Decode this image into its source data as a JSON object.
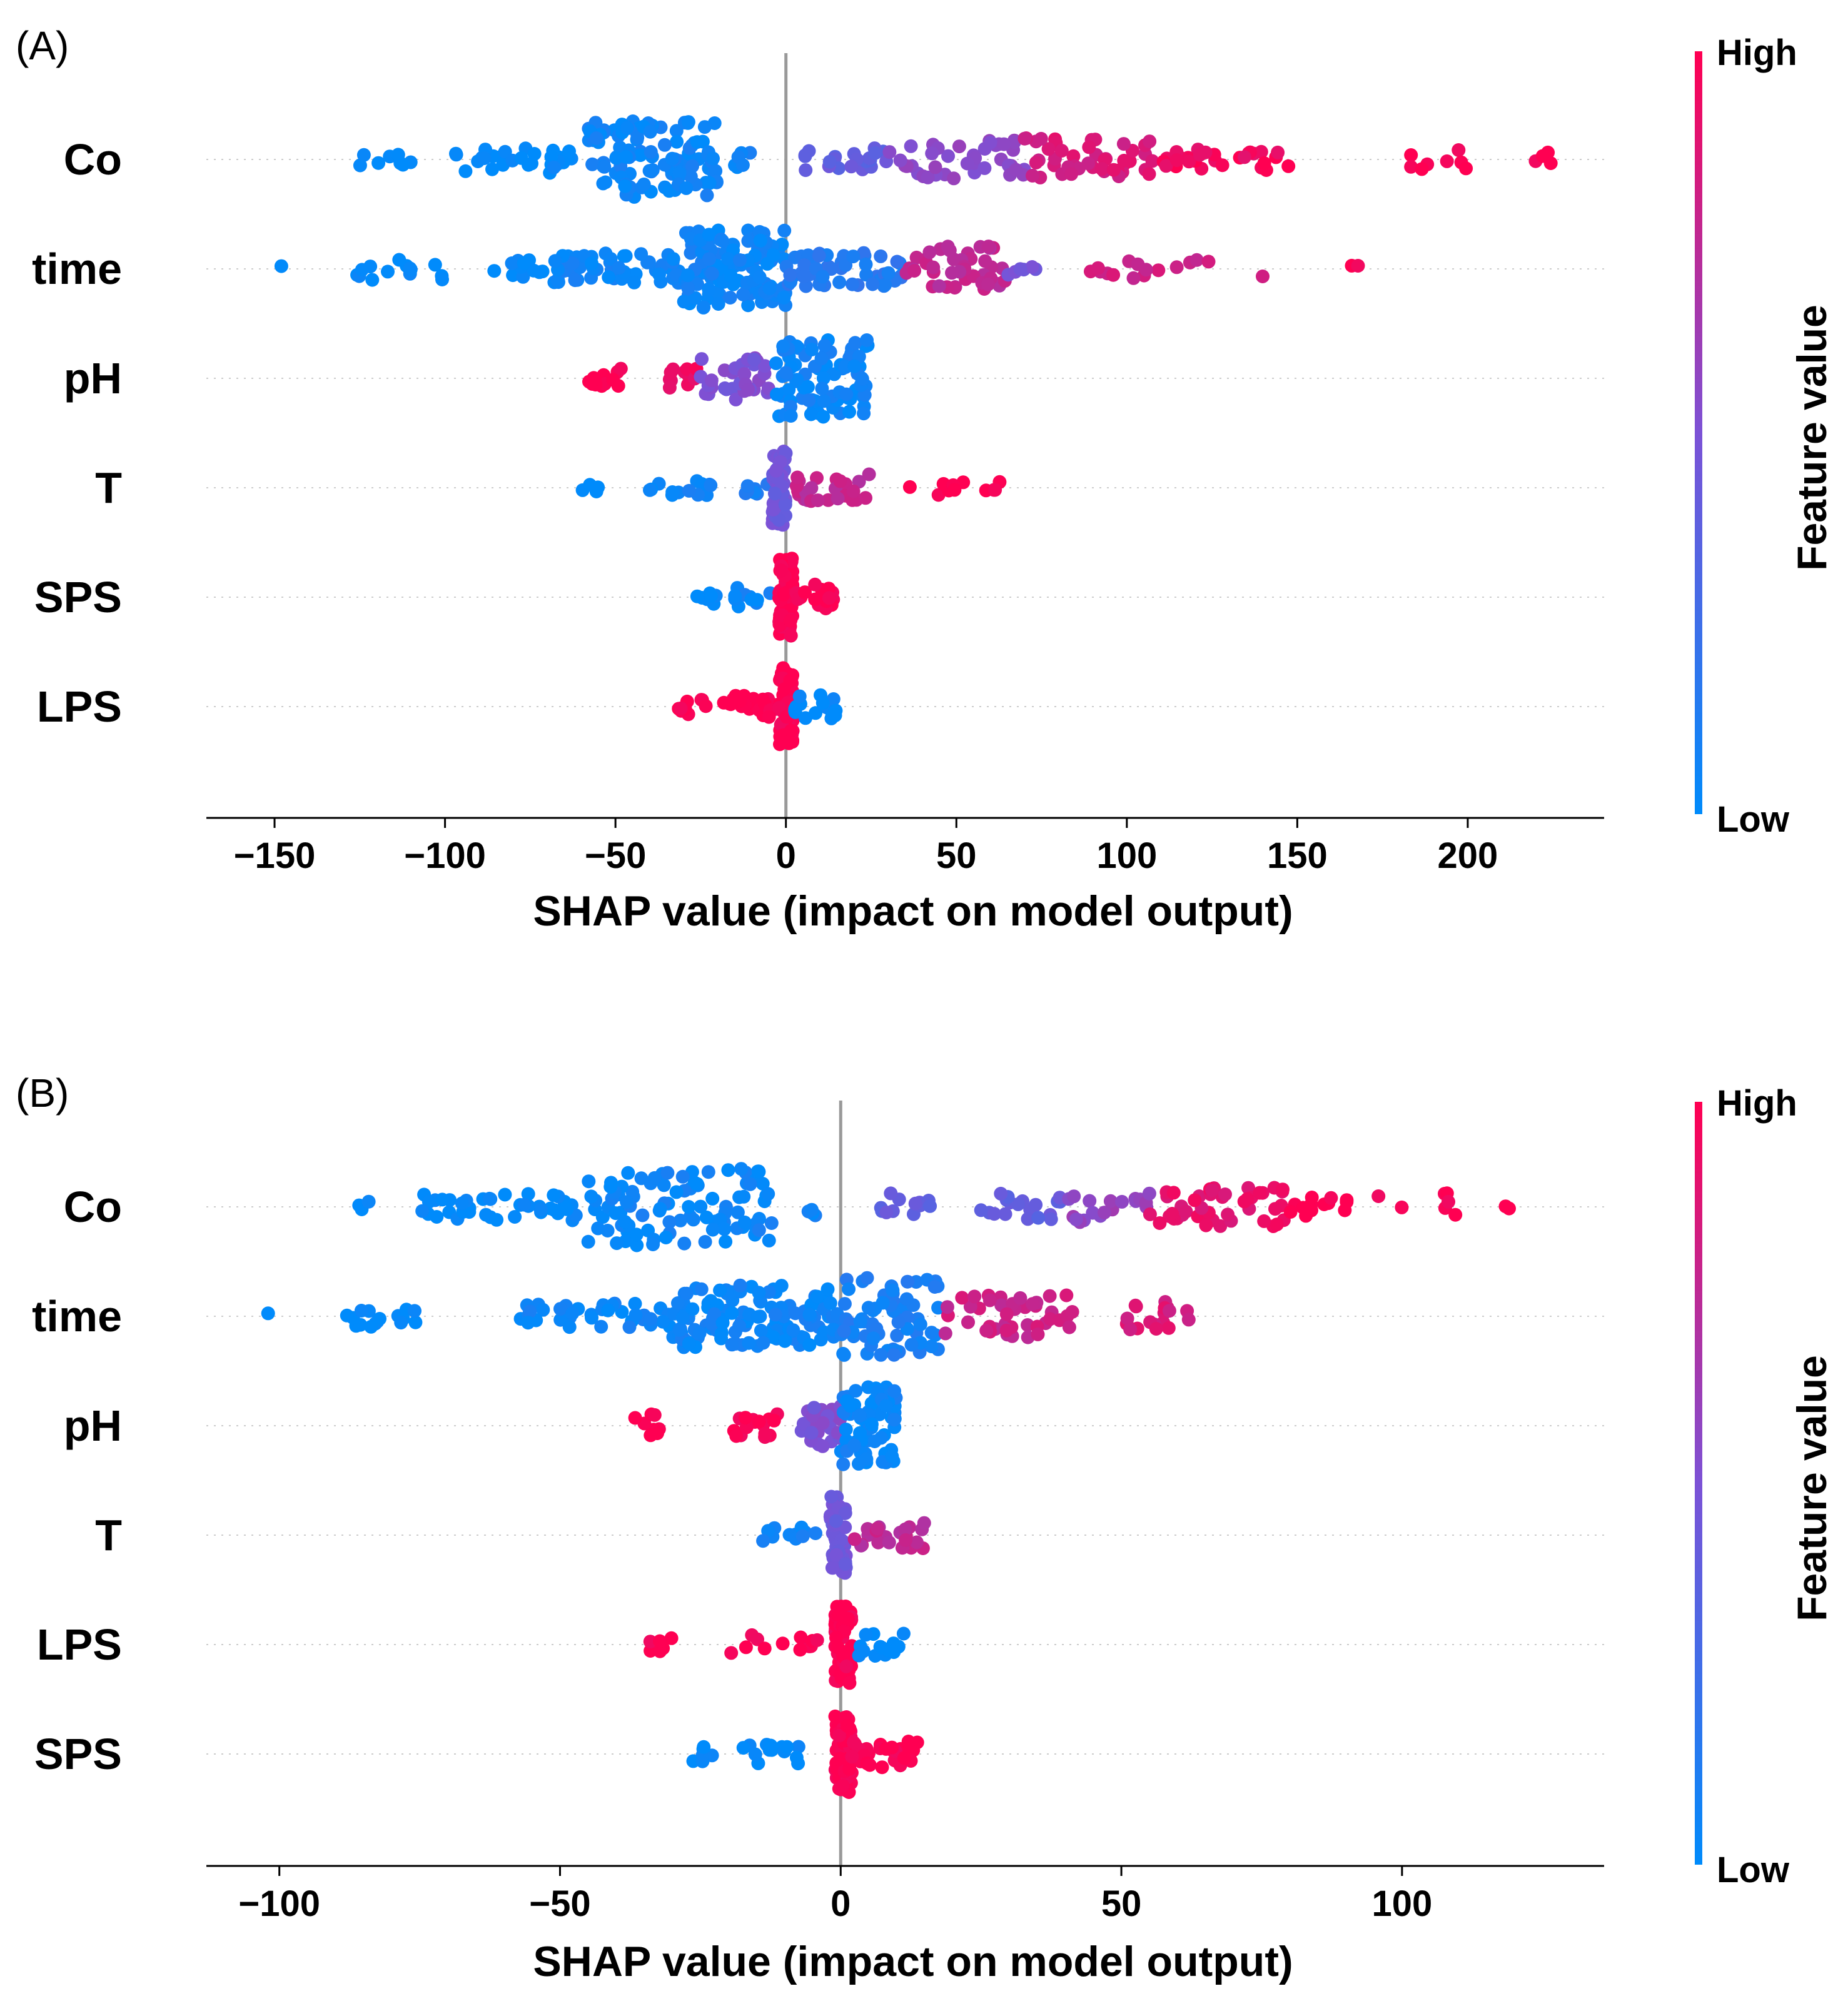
{
  "colors": {
    "low": "#008bfb",
    "high": "#ff0052",
    "axis": "#000000",
    "zero_line": "#999999",
    "grid": "#cccccc"
  },
  "chart_data": [
    {
      "panel_label": "(A)",
      "type": "scatter",
      "subtype": "shap-beeswarm",
      "xlabel": "SHAP value (impact on model output)",
      "xlim": [
        -170,
        240
      ],
      "xticks": [
        -150,
        -100,
        -50,
        0,
        50,
        100,
        150,
        200
      ],
      "xtick_labels": [
        "−150",
        "−100",
        "−50",
        "0",
        "50",
        "100",
        "150",
        "200"
      ],
      "colorbar": {
        "label": "Feature value",
        "high_label": "High",
        "low_label": "Low"
      },
      "features": [
        {
          "name": "Co",
          "segments": [
            {
              "from": -128,
              "to": -110,
              "color": 0.0,
              "count": 8,
              "spread": 0.2
            },
            {
              "from": -97,
              "to": -62,
              "color": 0.0,
              "count": 32,
              "spread": 0.35
            },
            {
              "from": -58,
              "to": -20,
              "color": 0.05,
              "count": 110,
              "spread": 1.0
            },
            {
              "from": -15,
              "to": -10,
              "color": 0.05,
              "count": 6,
              "spread": 0.3
            },
            {
              "from": 5,
              "to": 30,
              "color": 0.4,
              "count": 22,
              "spread": 0.3
            },
            {
              "from": 30,
              "to": 70,
              "color": 0.55,
              "count": 40,
              "spread": 0.5
            },
            {
              "from": 70,
              "to": 110,
              "color": 0.85,
              "count": 45,
              "spread": 0.55
            },
            {
              "from": 110,
              "to": 150,
              "color": 0.95,
              "count": 30,
              "spread": 0.3
            },
            {
              "from": 182,
              "to": 200,
              "color": 1.0,
              "count": 8,
              "spread": 0.25
            },
            {
              "from": 218,
              "to": 225,
              "color": 1.0,
              "count": 4,
              "spread": 0.2
            }
          ]
        },
        {
          "name": "time",
          "segments": [
            {
              "from": -148,
              "to": -147,
              "color": 0.0,
              "count": 1,
              "spread": 0.1
            },
            {
              "from": -127,
              "to": -100,
              "color": 0.0,
              "count": 14,
              "spread": 0.3
            },
            {
              "from": -86,
              "to": -70,
              "color": 0.0,
              "count": 14,
              "spread": 0.25
            },
            {
              "from": -68,
              "to": -30,
              "color": 0.05,
              "count": 60,
              "spread": 0.4
            },
            {
              "from": -30,
              "to": 0,
              "color": 0.05,
              "count": 130,
              "spread": 1.0
            },
            {
              "from": 0,
              "to": 35,
              "color": 0.15,
              "count": 55,
              "spread": 0.45
            },
            {
              "from": 35,
              "to": 65,
              "color": 0.75,
              "count": 45,
              "spread": 0.6
            },
            {
              "from": 65,
              "to": 75,
              "color": 0.5,
              "count": 6,
              "spread": 0.2
            },
            {
              "from": 88,
              "to": 140,
              "color": 0.8,
              "count": 16,
              "spread": 0.25
            },
            {
              "from": 150,
              "to": 168,
              "color": 1.0,
              "count": 2,
              "spread": 0.1
            }
          ]
        },
        {
          "name": "pH",
          "segments": [
            {
              "from": -58,
              "to": -48,
              "color": 1.0,
              "count": 14,
              "spread": 0.25
            },
            {
              "from": -35,
              "to": -25,
              "color": 0.95,
              "count": 12,
              "spread": 0.3
            },
            {
              "from": -25,
              "to": -5,
              "color": 0.5,
              "count": 35,
              "spread": 0.55
            },
            {
              "from": -3,
              "to": 24,
              "color": 0.05,
              "count": 90,
              "spread": 1.0
            }
          ]
        },
        {
          "name": "T",
          "segments": [
            {
              "from": -60,
              "to": -55,
              "color": 0.0,
              "count": 4,
              "spread": 0.15
            },
            {
              "from": -45,
              "to": -22,
              "color": 0.05,
              "count": 14,
              "spread": 0.2
            },
            {
              "from": -12,
              "to": -5,
              "color": 0.1,
              "count": 8,
              "spread": 0.2
            },
            {
              "from": -4,
              "to": 0,
              "color": 0.45,
              "count": 70,
              "spread": 1.0
            },
            {
              "from": 3,
              "to": 25,
              "color": 0.75,
              "count": 26,
              "spread": 0.35
            },
            {
              "from": 35,
              "to": 52,
              "color": 1.0,
              "count": 7,
              "spread": 0.2
            },
            {
              "from": 58,
              "to": 64,
              "color": 1.0,
              "count": 4,
              "spread": 0.2
            }
          ]
        },
        {
          "name": "SPS",
          "segments": [
            {
              "from": -28,
              "to": -18,
              "color": 0.0,
              "count": 8,
              "spread": 0.2
            },
            {
              "from": -15,
              "to": -4,
              "color": 0.05,
              "count": 10,
              "spread": 0.25
            },
            {
              "from": -2,
              "to": 2,
              "color": 1.0,
              "count": 80,
              "spread": 1.0
            },
            {
              "from": 2,
              "to": 14,
              "color": 1.0,
              "count": 18,
              "spread": 0.35
            }
          ]
        },
        {
          "name": "LPS",
          "segments": [
            {
              "from": -32,
              "to": -23,
              "color": 1.0,
              "count": 9,
              "spread": 0.25
            },
            {
              "from": -19,
              "to": -2,
              "color": 1.0,
              "count": 22,
              "spread": 0.3
            },
            {
              "from": -2,
              "to": 2,
              "color": 1.0,
              "count": 80,
              "spread": 1.0
            },
            {
              "from": 2,
              "to": 15,
              "color": 0.0,
              "count": 16,
              "spread": 0.35
            }
          ]
        }
      ]
    },
    {
      "panel_label": "(B)",
      "type": "scatter",
      "subtype": "shap-beeswarm",
      "xlabel": "SHAP value (impact on model output)",
      "xlim": [
        -113,
        136
      ],
      "xticks": [
        -100,
        -50,
        0,
        50,
        100
      ],
      "xtick_labels": [
        "−100",
        "−50",
        "0",
        "50",
        "100"
      ],
      "colorbar": {
        "label": "Feature value",
        "high_label": "High",
        "low_label": "Low"
      },
      "features": [
        {
          "name": "Co",
          "segments": [
            {
              "from": -86,
              "to": -84,
              "color": 0.0,
              "count": 3,
              "spread": 0.2
            },
            {
              "from": -76,
              "to": -45,
              "color": 0.0,
              "count": 40,
              "spread": 0.35
            },
            {
              "from": -45,
              "to": -12,
              "color": 0.05,
              "count": 100,
              "spread": 1.0
            },
            {
              "from": -7,
              "to": -4,
              "color": 0.05,
              "count": 4,
              "spread": 0.3
            },
            {
              "from": 7,
              "to": 40,
              "color": 0.4,
              "count": 32,
              "spread": 0.35
            },
            {
              "from": 40,
              "to": 55,
              "color": 0.6,
              "count": 20,
              "spread": 0.4
            },
            {
              "from": 55,
              "to": 80,
              "color": 0.9,
              "count": 45,
              "spread": 0.5
            },
            {
              "from": 80,
              "to": 100,
              "color": 1.0,
              "count": 15,
              "spread": 0.3
            },
            {
              "from": 107,
              "to": 110,
              "color": 1.0,
              "count": 5,
              "spread": 0.35
            },
            {
              "from": 118,
              "to": 125,
              "color": 1.0,
              "count": 2,
              "spread": 0.1
            }
          ]
        },
        {
          "name": "time",
          "segments": [
            {
              "from": -102,
              "to": -101,
              "color": 0.0,
              "count": 1,
              "spread": 0.1
            },
            {
              "from": -88,
              "to": -75,
              "color": 0.0,
              "count": 16,
              "spread": 0.3
            },
            {
              "from": -58,
              "to": -30,
              "color": 0.05,
              "count": 40,
              "spread": 0.35
            },
            {
              "from": -30,
              "to": 0,
              "color": 0.05,
              "count": 120,
              "spread": 0.8
            },
            {
              "from": 0,
              "to": 18,
              "color": 0.1,
              "count": 70,
              "spread": 1.0
            },
            {
              "from": 18,
              "to": 43,
              "color": 0.8,
              "count": 45,
              "spread": 0.55
            },
            {
              "from": 50,
              "to": 63,
              "color": 0.85,
              "count": 18,
              "spread": 0.4
            }
          ]
        },
        {
          "name": "pH",
          "segments": [
            {
              "from": -38,
              "to": -32,
              "color": 1.0,
              "count": 10,
              "spread": 0.3
            },
            {
              "from": -20,
              "to": -8,
              "color": 1.0,
              "count": 16,
              "spread": 0.3
            },
            {
              "from": -7,
              "to": 0,
              "color": 0.5,
              "count": 25,
              "spread": 0.55
            },
            {
              "from": 0,
              "to": 10,
              "color": 0.05,
              "count": 70,
              "spread": 1.0
            }
          ]
        },
        {
          "name": "T",
          "segments": [
            {
              "from": -14,
              "to": -4,
              "color": 0.05,
              "count": 12,
              "spread": 0.2
            },
            {
              "from": -2,
              "to": 1,
              "color": 0.45,
              "count": 60,
              "spread": 1.0
            },
            {
              "from": 2,
              "to": 15,
              "color": 0.75,
              "count": 24,
              "spread": 0.35
            }
          ]
        },
        {
          "name": "LPS",
          "segments": [
            {
              "from": -34,
              "to": -30,
              "color": 1.0,
              "count": 6,
              "spread": 0.2
            },
            {
              "from": -20,
              "to": -3,
              "color": 1.0,
              "count": 12,
              "spread": 0.25
            },
            {
              "from": -1,
              "to": 2,
              "color": 1.0,
              "count": 70,
              "spread": 1.0
            },
            {
              "from": 3,
              "to": 12,
              "color": 0.0,
              "count": 14,
              "spread": 0.3
            }
          ]
        },
        {
          "name": "SPS",
          "segments": [
            {
              "from": -27,
              "to": -22,
              "color": 0.0,
              "count": 6,
              "spread": 0.2
            },
            {
              "from": -19,
              "to": -7,
              "color": 0.0,
              "count": 14,
              "spread": 0.25
            },
            {
              "from": -1,
              "to": 2,
              "color": 1.0,
              "count": 70,
              "spread": 1.0
            },
            {
              "from": 2,
              "to": 18,
              "color": 1.0,
              "count": 26,
              "spread": 0.35
            }
          ]
        }
      ]
    }
  ]
}
